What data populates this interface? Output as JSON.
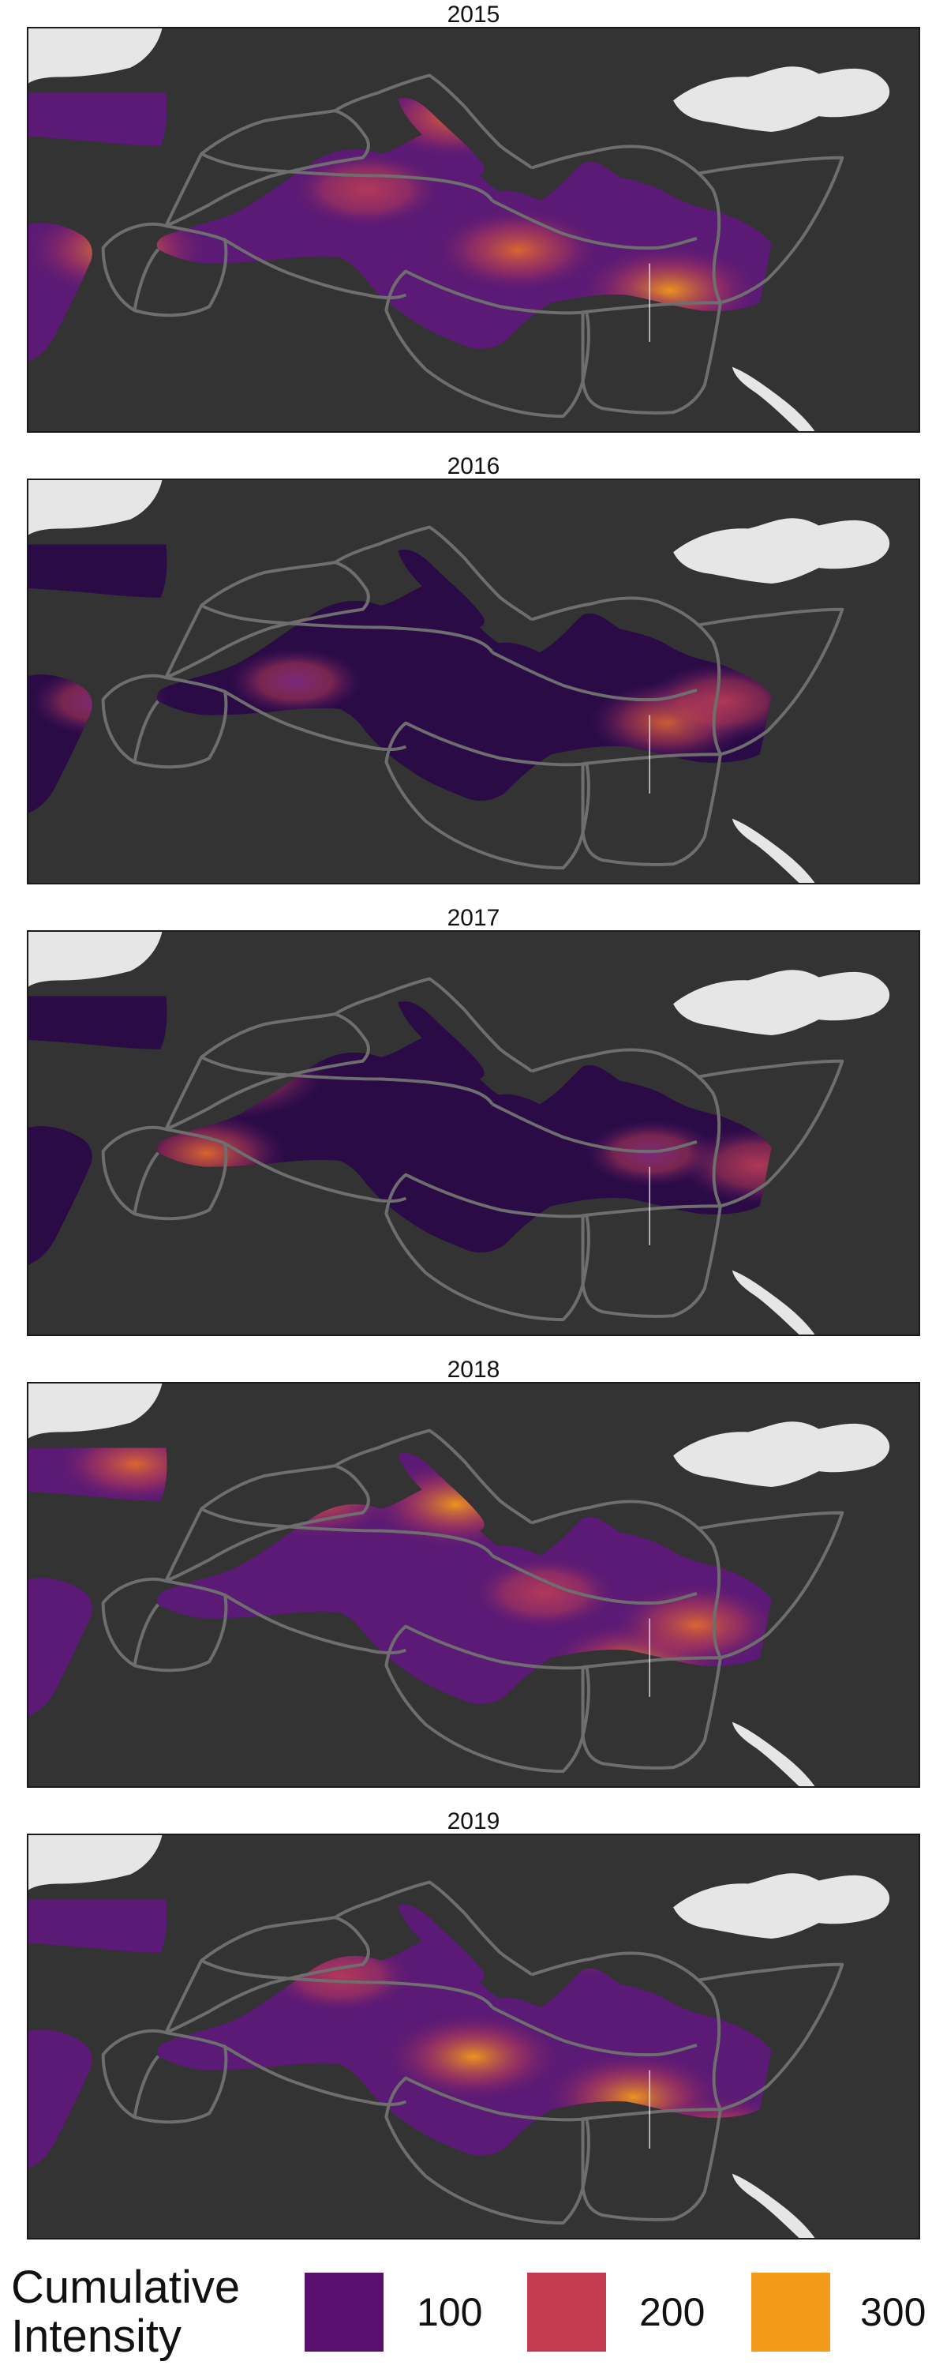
{
  "panels": [
    {
      "year": "2015",
      "hotspots": [
        [
          0.1,
          0.55,
          0.9
        ],
        [
          0.48,
          0.22,
          0.7
        ],
        [
          0.72,
          0.65,
          0.85
        ],
        [
          0.55,
          0.55,
          0.7
        ],
        [
          0.66,
          0.75,
          0.75
        ],
        [
          0.38,
          0.4,
          0.55
        ]
      ]
    },
    {
      "year": "2016",
      "hotspots": [
        [
          0.72,
          0.6,
          0.6
        ],
        [
          0.78,
          0.55,
          0.55
        ],
        [
          0.3,
          0.5,
          0.35
        ],
        [
          0.08,
          0.55,
          0.4
        ]
      ]
    },
    {
      "year": "2017",
      "hotspots": [
        [
          0.23,
          0.35,
          0.85
        ],
        [
          0.2,
          0.55,
          0.6
        ],
        [
          0.82,
          0.58,
          0.55
        ],
        [
          0.7,
          0.55,
          0.35
        ]
      ]
    },
    {
      "year": "2018",
      "hotspots": [
        [
          0.32,
          0.28,
          0.75
        ],
        [
          0.48,
          0.3,
          0.8
        ],
        [
          0.68,
          0.7,
          0.8
        ],
        [
          0.75,
          0.6,
          0.7
        ],
        [
          0.12,
          0.2,
          0.6
        ],
        [
          0.58,
          0.52,
          0.5
        ]
      ]
    },
    {
      "year": "2019",
      "hotspots": [
        [
          0.5,
          0.55,
          0.8
        ],
        [
          0.68,
          0.65,
          0.85
        ],
        [
          0.78,
          0.75,
          0.7
        ],
        [
          0.62,
          0.25,
          0.75
        ],
        [
          0.35,
          0.35,
          0.5
        ]
      ]
    }
  ],
  "legend": {
    "title_line1": "Cumulative",
    "title_line2": "Intensity",
    "items": [
      {
        "label": "100",
        "color": "#5a0f6e"
      },
      {
        "label": "200",
        "color": "#c23b4f"
      },
      {
        "label": "300",
        "color": "#f39a1a"
      }
    ]
  },
  "colors": {
    "background": "#333333",
    "land": "#e6e6e6",
    "sea_low": "#2a0b45",
    "sea_mid": "#5a1a75",
    "sea_high": "#f39a1a",
    "boundary": "#6e6e6e"
  }
}
